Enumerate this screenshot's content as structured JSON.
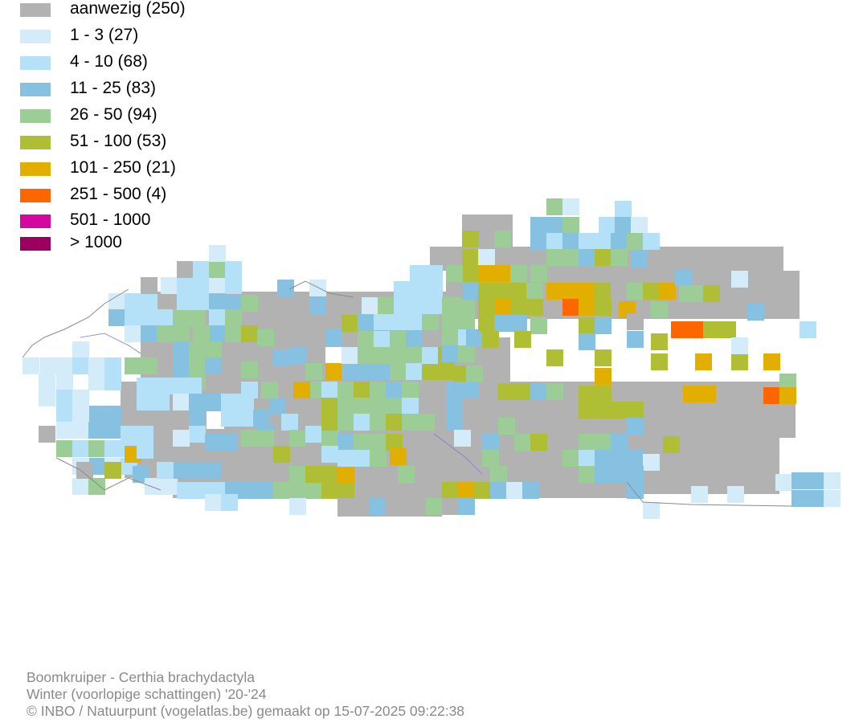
{
  "legend": [
    {
      "label": "aanwezig (250)",
      "color": "#b2b2b2"
    },
    {
      "label": "1 - 3 (27)",
      "color": "#d4ecfa"
    },
    {
      "label": "4 - 10 (68)",
      "color": "#b4e1f8"
    },
    {
      "label": "11 - 25 (83)",
      "color": "#86c1e1"
    },
    {
      "label": "26 - 50 (94)",
      "color": "#9ccd96"
    },
    {
      "label": "51 - 100 (53)",
      "color": "#b0be36"
    },
    {
      "label": "101 - 250 (21)",
      "color": "#e2ae00"
    },
    {
      "label": "251 - 500 (4)",
      "color": "#ff6600"
    },
    {
      "label": "501 - 1000",
      "color": "#d3089e"
    },
    {
      "label": "> 1000",
      "color": "#9b0061"
    }
  ],
  "footer": {
    "species": "Boomkruiper - Certhia brachydactyla",
    "period": "Winter (voorlopige schattingen) '20-'24",
    "credit": "© INBO / Natuurpunt (vogelatlas.be) gemaakt op 15-07-2025 09:22:38"
  }
}
